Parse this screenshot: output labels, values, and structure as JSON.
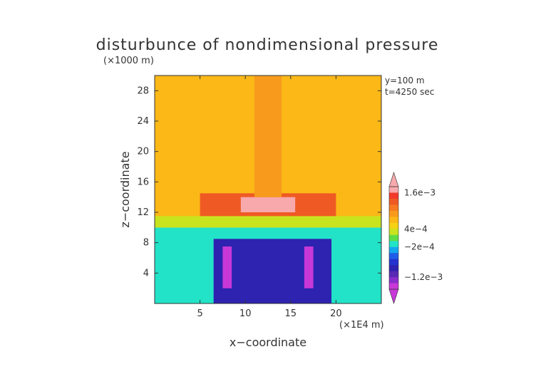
{
  "chart_data": {
    "type": "heatmap",
    "title": "disturbunce of nondimensional pressure",
    "z_unit": "(×1000 m)",
    "x_unit": "(×1E4 m)",
    "xlabel": "x−coordinate",
    "ylabel": "z−coordinate",
    "annotation_lines": [
      "y=100  m",
      "t=4250  sec"
    ],
    "xlim": [
      0,
      25
    ],
    "ylim": [
      0,
      30
    ],
    "x_ticks": [
      5,
      10,
      15,
      20
    ],
    "y_ticks": [
      4,
      8,
      12,
      16,
      20,
      24,
      28
    ],
    "x_tick_labels": [
      "5",
      "10",
      "15",
      "20"
    ],
    "y_tick_labels": [
      "4",
      "8",
      "12",
      "16",
      "20",
      "24",
      "28"
    ],
    "colorbar_labels": [
      {
        "value": 0.0016,
        "text": "1.6e−3"
      },
      {
        "value": 0.0004,
        "text": "4e−4"
      },
      {
        "value": -0.0002,
        "text": "−2e−4"
      },
      {
        "value": -0.0012,
        "text": "−1.2e−3"
      }
    ],
    "colorbar_levels": [
      {
        "lo": 0.0016,
        "color": "#f7a9ac"
      },
      {
        "lo": 0.0014,
        "color": "#f23a2a"
      },
      {
        "lo": 0.0012,
        "color": "#ef5a24"
      },
      {
        "lo": 0.001,
        "color": "#f57a22"
      },
      {
        "lo": 0.0008,
        "color": "#f89a1c"
      },
      {
        "lo": 0.0006,
        "color": "#fbb817"
      },
      {
        "lo": 0.0004,
        "color": "#f5d215"
      },
      {
        "lo": 0.0002,
        "color": "#c8e41f"
      },
      {
        "lo": 0.0,
        "color": "#5edd46"
      },
      {
        "lo": -0.0002,
        "color": "#22e3c8"
      },
      {
        "lo": -0.0004,
        "color": "#14a7ee"
      },
      {
        "lo": -0.0006,
        "color": "#1f5de8"
      },
      {
        "lo": -0.0008,
        "color": "#2432cf"
      },
      {
        "lo": -0.001,
        "color": "#2e22b0"
      },
      {
        "lo": -0.0012,
        "color": "#5a2ab4"
      },
      {
        "lo": -0.0014,
        "color": "#8a2ccc"
      },
      {
        "lo": -0.0016,
        "color": "#c838d8"
      }
    ],
    "field_regions": [
      {
        "x": [
          0,
          25
        ],
        "z": [
          0,
          10
        ],
        "value": -0.0001
      },
      {
        "x": [
          6.5,
          19.5
        ],
        "z": [
          0,
          8.5
        ],
        "value": -0.0009
      },
      {
        "x": [
          7.5,
          8.5
        ],
        "z": [
          2,
          7.5
        ],
        "value": -0.0015
      },
      {
        "x": [
          16.5,
          17.5
        ],
        "z": [
          2,
          7.5
        ],
        "value": -0.0015
      },
      {
        "x": [
          0,
          25
        ],
        "z": [
          10,
          30
        ],
        "value": 0.0007
      },
      {
        "x": [
          0,
          25
        ],
        "z": [
          10,
          11.5
        ],
        "value": 0.0003
      },
      {
        "x": [
          5,
          20
        ],
        "z": [
          11.5,
          14.5
        ],
        "value": 0.0013
      },
      {
        "x": [
          9.5,
          15.5
        ],
        "z": [
          12,
          14
        ],
        "value": 0.0017
      },
      {
        "x": [
          11,
          14
        ],
        "z": [
          14,
          30
        ],
        "value": 0.0009
      }
    ]
  }
}
